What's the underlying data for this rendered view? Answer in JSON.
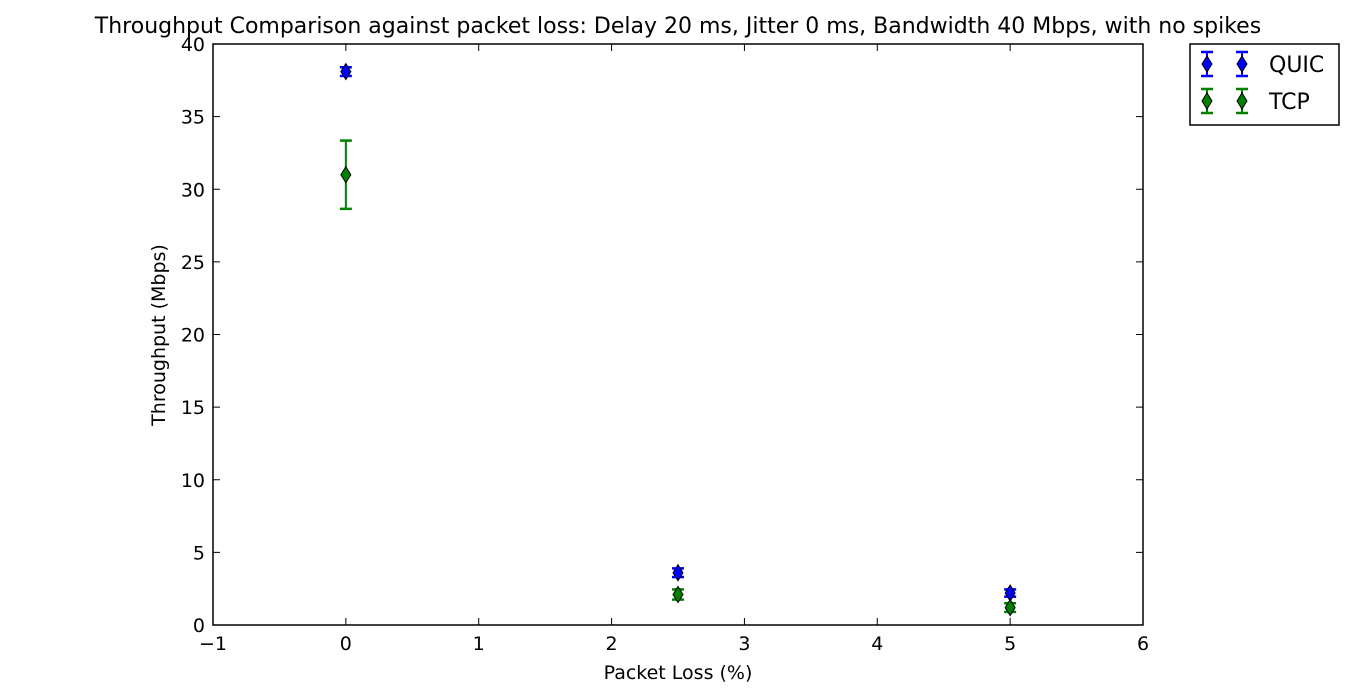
{
  "chart_data": {
    "type": "scatter",
    "title": "Throughput Comparison against packet loss: Delay 20 ms, Jitter 0 ms, Bandwidth 40 Mbps, with no spikes",
    "xlabel": "Packet Loss (%)",
    "ylabel": "Throughput (Mbps)",
    "xlim": [
      -1,
      6
    ],
    "ylim": [
      0,
      40
    ],
    "xticks": [
      -1,
      0,
      1,
      2,
      3,
      4,
      5,
      6
    ],
    "yticks": [
      0,
      5,
      10,
      15,
      20,
      25,
      30,
      35,
      40
    ],
    "xtick_labels": [
      "−1",
      "0",
      "1",
      "2",
      "3",
      "4",
      "5",
      "6"
    ],
    "ytick_labels": [
      "0",
      "5",
      "10",
      "15",
      "20",
      "25",
      "30",
      "35",
      "40"
    ],
    "grid": false,
    "legend_position": "outside-top-right",
    "marker": "diamond",
    "series": [
      {
        "name": "QUIC",
        "color": "#0000ff",
        "x": [
          0,
          2.5,
          5
        ],
        "y": [
          38.1,
          3.6,
          2.2
        ],
        "yerr": [
          0.3,
          0.3,
          0.25
        ]
      },
      {
        "name": "TCP",
        "color": "#008000",
        "x": [
          0,
          2.5,
          5
        ],
        "y": [
          31.0,
          2.1,
          1.2
        ],
        "yerr": [
          2.35,
          0.35,
          0.3
        ]
      }
    ]
  }
}
